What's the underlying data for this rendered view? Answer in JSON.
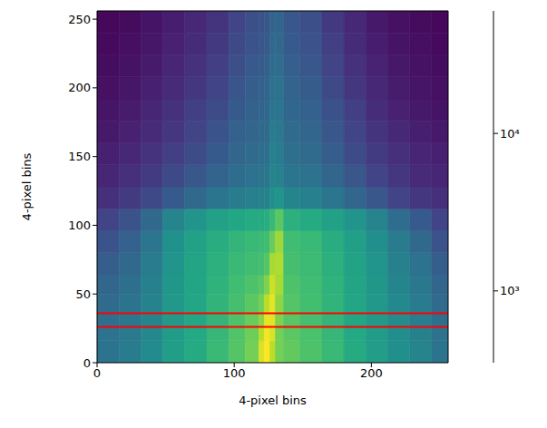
{
  "chart_data": {
    "type": "heatmap",
    "x_label": "4-pixel bins",
    "y_label": "4-pixel bins",
    "xlim": [
      0,
      256
    ],
    "ylim": [
      0,
      256
    ],
    "xticks": [
      0,
      100,
      200
    ],
    "yticks": [
      0,
      50,
      100,
      150,
      200,
      250
    ],
    "x_edges": [
      0,
      16,
      32,
      48,
      64,
      80,
      96,
      108,
      118,
      122,
      126,
      130,
      136,
      148,
      164,
      180,
      196,
      212,
      228,
      244,
      256
    ],
    "y_edges": [
      0,
      16,
      26,
      36,
      50,
      64,
      80,
      96,
      112,
      128,
      144,
      160,
      176,
      192,
      208,
      224,
      240,
      256
    ],
    "cells": [
      [
        2500,
        3000,
        4000,
        6000,
        8000,
        11000,
        15000,
        20000,
        45000,
        60000,
        35000,
        20000,
        17000,
        14000,
        11000,
        8000,
        6000,
        4500,
        3500,
        2500
      ],
      [
        2400,
        2800,
        3800,
        5800,
        7800,
        10500,
        14500,
        19000,
        35000,
        55000,
        45000,
        20000,
        16000,
        13500,
        10500,
        7800,
        5800,
        4300,
        3300,
        2400
      ],
      [
        2300,
        2700,
        3600,
        5600,
        7600,
        10000,
        14000,
        18000,
        25000,
        50000,
        48000,
        22000,
        15500,
        13000,
        10000,
        7500,
        5600,
        4100,
        3100,
        2300
      ],
      [
        2100,
        2500,
        3400,
        5400,
        7400,
        9800,
        13000,
        16000,
        20000,
        35000,
        50000,
        25000,
        15000,
        12500,
        9800,
        7300,
        5400,
        3900,
        2900,
        2100
      ],
      [
        1900,
        2300,
        3200,
        5200,
        7200,
        9500,
        12000,
        14000,
        16000,
        22000,
        40000,
        30000,
        14000,
        12000,
        9500,
        7000,
        5200,
        3600,
        2700,
        1900
      ],
      [
        1600,
        2000,
        3000,
        5000,
        7000,
        9000,
        11000,
        12000,
        13000,
        15000,
        30000,
        32000,
        13000,
        11500,
        9000,
        6800,
        5000,
        3300,
        2400,
        1600
      ],
      [
        1300,
        1700,
        2600,
        4600,
        6500,
        8500,
        10000,
        11000,
        11500,
        12000,
        18000,
        28000,
        12000,
        11000,
        8500,
        6400,
        4500,
        2900,
        2000,
        1300
      ],
      [
        1000,
        1300,
        2000,
        3500,
        5000,
        6500,
        7500,
        8000,
        8200,
        8500,
        11000,
        16000,
        9000,
        8000,
        6500,
        5000,
        3500,
        2200,
        1500,
        1000
      ],
      [
        700,
        850,
        1100,
        1500,
        2000,
        2600,
        3000,
        3200,
        3300,
        3400,
        4500,
        5000,
        3600,
        3200,
        2600,
        1900,
        1400,
        1000,
        800,
        700
      ],
      [
        600,
        700,
        850,
        1100,
        1400,
        1800,
        2200,
        2400,
        2500,
        2600,
        3500,
        3400,
        2600,
        2400,
        1900,
        1400,
        1000,
        800,
        650,
        600
      ],
      [
        550,
        620,
        750,
        900,
        1150,
        1500,
        1900,
        2100,
        2200,
        2300,
        3200,
        3000,
        2300,
        2100,
        1600,
        1150,
        850,
        700,
        600,
        550
      ],
      [
        500,
        560,
        650,
        800,
        1000,
        1300,
        1700,
        1900,
        2000,
        2100,
        2900,
        2800,
        2100,
        1900,
        1400,
        1000,
        760,
        620,
        540,
        500
      ],
      [
        470,
        520,
        600,
        720,
        900,
        1150,
        1500,
        1750,
        1850,
        1950,
        2600,
        2600,
        1950,
        1700,
        1250,
        900,
        680,
        560,
        500,
        460
      ],
      [
        440,
        480,
        550,
        650,
        800,
        1000,
        1350,
        1600,
        1700,
        1800,
        2400,
        2400,
        1800,
        1550,
        1100,
        800,
        620,
        520,
        470,
        440
      ],
      [
        420,
        450,
        510,
        600,
        720,
        900,
        1200,
        1450,
        1550,
        1650,
        2200,
        2200,
        1650,
        1400,
        1000,
        720,
        570,
        490,
        450,
        420
      ],
      [
        400,
        430,
        480,
        560,
        660,
        820,
        1100,
        1300,
        1400,
        1500,
        2000,
        2000,
        1500,
        1280,
        900,
        660,
        530,
        460,
        430,
        400
      ],
      [
        390,
        410,
        460,
        530,
        620,
        760,
        1000,
        1200,
        1300,
        1400,
        1850,
        1850,
        1400,
        1200,
        820,
        620,
        500,
        440,
        410,
        390
      ]
    ],
    "colorbar": {
      "range": [
        350,
        60000
      ],
      "scale": "log",
      "ticks": [
        {
          "value": 1000,
          "label": "10³"
        },
        {
          "value": 10000,
          "label": "10⁴"
        }
      ]
    },
    "hlines": {
      "y": [
        26,
        36
      ],
      "color": "#ff0000"
    }
  }
}
